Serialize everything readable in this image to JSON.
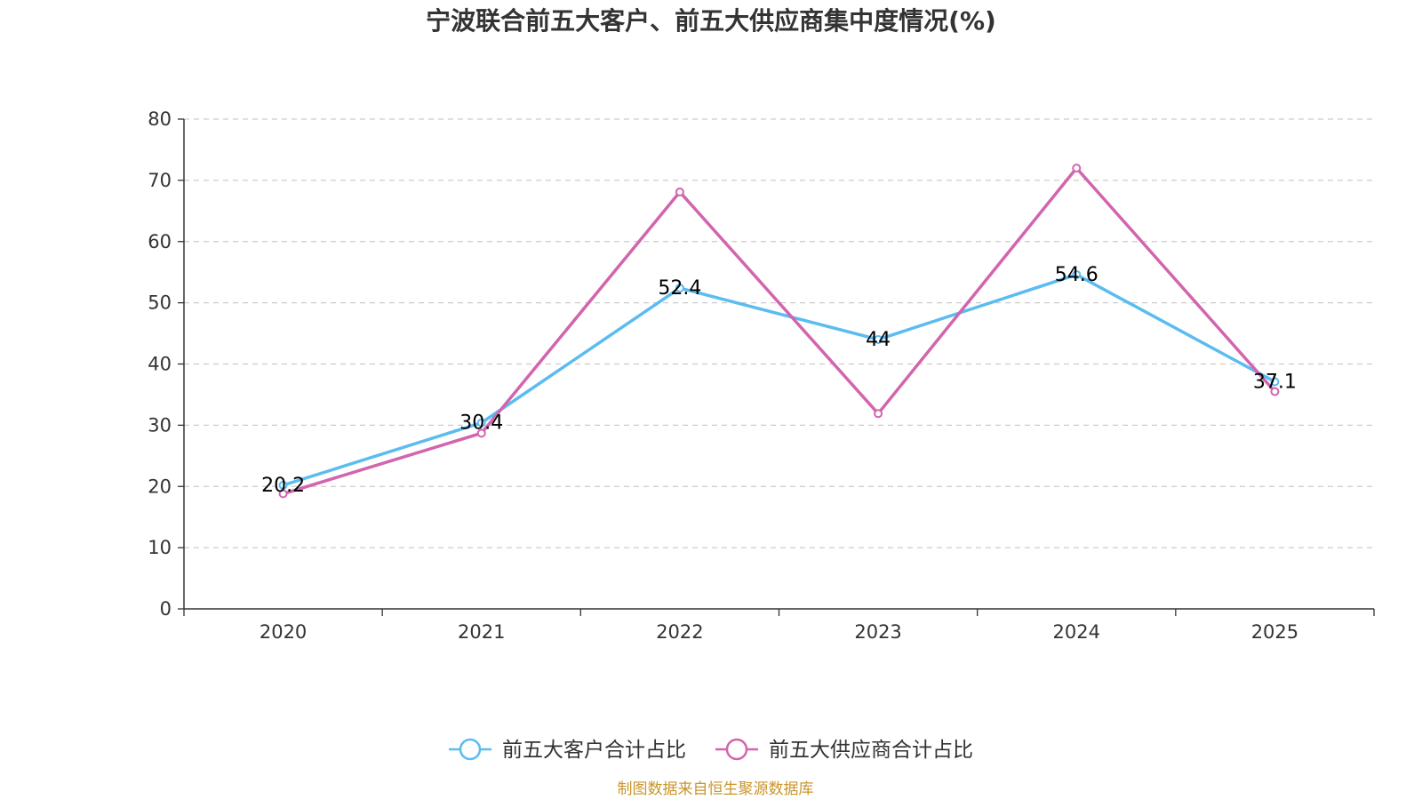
{
  "chart_data": {
    "type": "line",
    "title": "宁波联合前五大客户、前五大供应商集中度情况(%)",
    "categories": [
      "2020",
      "2021",
      "2022",
      "2023",
      "2024",
      "2025"
    ],
    "ylim": [
      0,
      80
    ],
    "yticks": [
      "0",
      "10",
      "20",
      "30",
      "40",
      "50",
      "60",
      "70",
      "80"
    ],
    "ytick_values": [
      0,
      10,
      20,
      30,
      40,
      50,
      60,
      70,
      80
    ],
    "grid": true,
    "legend_position": "bottom-center",
    "series": [
      {
        "name": "前五大客户合计占比",
        "color": "#5bbcf0",
        "values": [
          20.2,
          30.4,
          52.4,
          44,
          54.6,
          37.1
        ],
        "labels": [
          "20.2",
          "30.4",
          "52.4",
          "44",
          "54.6",
          "37.1"
        ]
      },
      {
        "name": "前五大供应商合计占比",
        "color": "#d265ad",
        "values": [
          18.8,
          28.7,
          68.1,
          31.9,
          72.0,
          35.5
        ]
      }
    ],
    "source": "制图数据来自恒生聚源数据库"
  }
}
